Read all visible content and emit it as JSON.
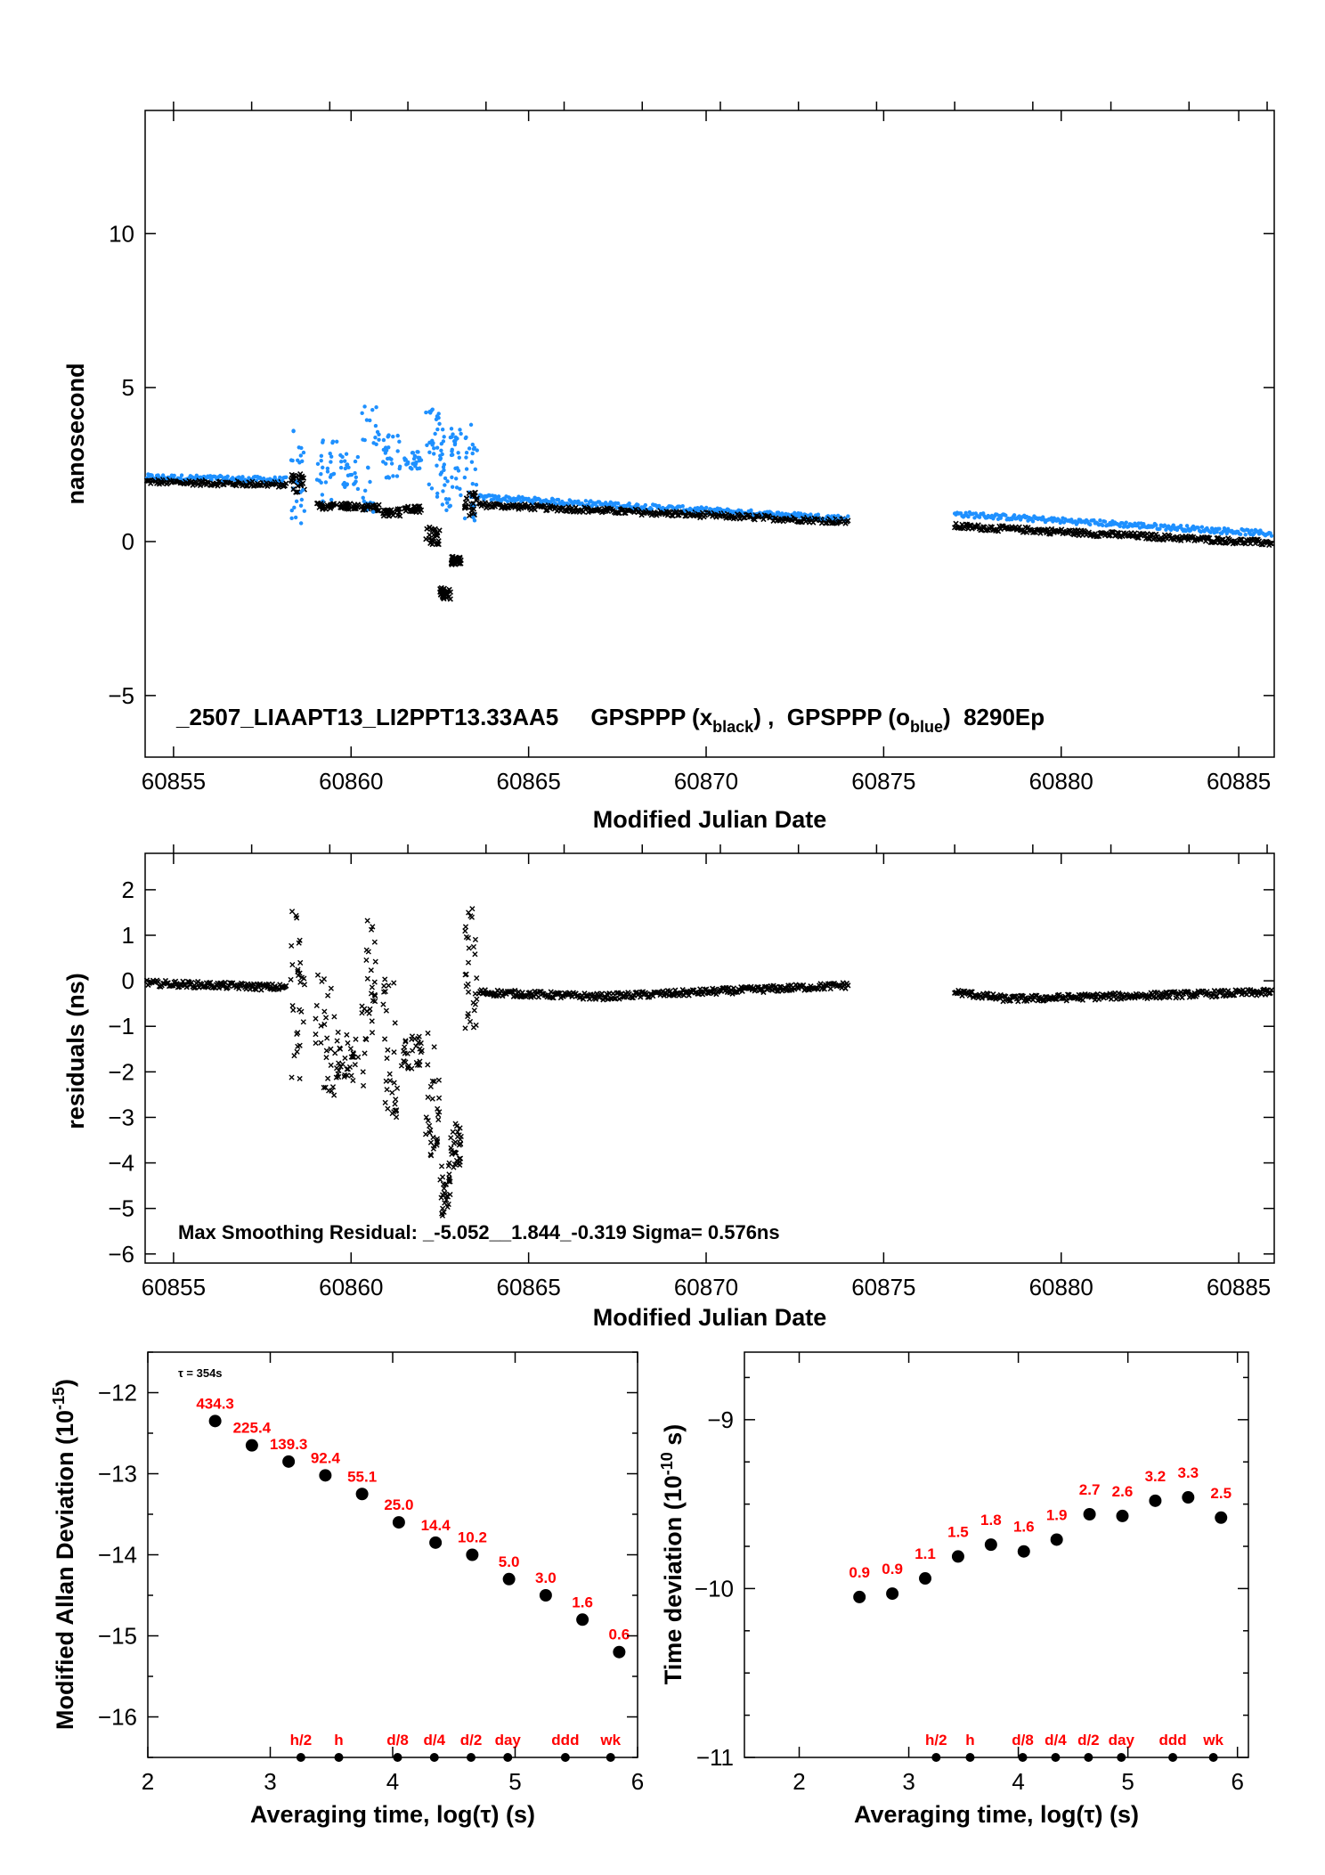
{
  "colors": {
    "black_series": "#000000",
    "blue_series": "#1e90ff",
    "label_red": "#ff0000"
  },
  "chart_data": [
    {
      "type": "scatter",
      "ylabel": "nanosecond",
      "xlabel": "Modified Julian Date",
      "xlim": [
        60854.2,
        60886
      ],
      "ylim": [
        -7,
        14
      ],
      "xticks": [
        "60855",
        "60860",
        "60865",
        "60870",
        "60875",
        "60880",
        "60885"
      ],
      "yticks": [
        "−5",
        "0",
        "5",
        "10"
      ],
      "annotation": {
        "prefix": "_2507_LIAAPT13_LI2PPT13.33AA5     GPSPPP (x",
        "sub1": "black",
        "mid": ") ,  GPSPPP (o",
        "sub2": "blue",
        "suffix": ")  8290Ep"
      },
      "series": [
        {
          "name": "GPSPPP (x black)",
          "marker": "x",
          "color": "#000000",
          "trend": [
            [
              60854.2,
              1.95
            ],
            [
              60858.2,
              1.85
            ],
            [
              60863.5,
              1.2
            ],
            [
              60874,
              0.65
            ],
            [
              60877,
              0.5
            ],
            [
              60886,
              -0.05
            ]
          ]
        },
        {
          "name": "GPSPPP (o blue)",
          "marker": "o",
          "color": "#1e90ff",
          "trend": [
            [
              60854.2,
              2.1
            ],
            [
              60858.2,
              2.0
            ],
            [
              60863.5,
              1.45
            ],
            [
              60874,
              0.75
            ],
            [
              60877,
              0.9
            ],
            [
              60886,
              0.25
            ]
          ]
        }
      ],
      "gap": [
        60874,
        60877
      ]
    },
    {
      "type": "scatter",
      "ylabel": "residuals (ns)",
      "xlabel": "Modified Julian Date",
      "xlim": [
        60854.2,
        60886
      ],
      "ylim": [
        -6.2,
        2.8
      ],
      "xticks": [
        "60855",
        "60860",
        "60865",
        "60870",
        "60875",
        "60880",
        "60885"
      ],
      "yticks": [
        "2",
        "1",
        "0",
        "−1",
        "−2",
        "−3",
        "−4",
        "−5",
        "−6"
      ],
      "annotation": "Max Smoothing Residual: _-5.052__1.844_-0.319  Sigma= 0.576ns",
      "trend": [
        [
          60854.2,
          -0.05
        ],
        [
          60858.2,
          -0.15
        ],
        [
          60863.5,
          -0.25
        ],
        [
          60867,
          -0.35
        ],
        [
          60874,
          -0.1
        ],
        [
          60877,
          -0.25
        ],
        [
          60878.5,
          -0.4
        ],
        [
          60886,
          -0.25
        ]
      ],
      "gap": [
        60874,
        60877
      ]
    },
    {
      "type": "scatter",
      "ylabel": "Modified Allan Deviation (10",
      "ylabel_sup": "-15",
      "ylabel_end": ")",
      "xlabel": "Averaging time, log(τ) (s)",
      "xlim": [
        2,
        6
      ],
      "ylim": [
        -16.5,
        -11.5
      ],
      "xticks": [
        "2",
        "3",
        "4",
        "5",
        "6"
      ],
      "yticks": [
        "−12",
        "−13",
        "−14",
        "−15",
        "−16"
      ],
      "tau_note": "τ = 354s",
      "x": [
        2.55,
        2.85,
        3.15,
        3.45,
        3.75,
        4.05,
        4.35,
        4.65,
        4.95,
        5.25,
        5.55,
        5.85
      ],
      "y": [
        -12.35,
        -12.65,
        -12.85,
        -13.02,
        -13.25,
        -13.6,
        -13.85,
        -14.0,
        -14.3,
        -14.5,
        -14.8,
        -15.2
      ],
      "point_labels": [
        "434.3",
        "225.4",
        "139.3",
        "92.4",
        "55.1",
        "25.0",
        "14.4",
        "10.2",
        "5.0",
        "3.0",
        "1.6",
        "0.6"
      ],
      "markers": [
        {
          "label": "h/2",
          "x": 3.25
        },
        {
          "label": "h",
          "x": 3.56
        },
        {
          "label": "d/8",
          "x": 4.04
        },
        {
          "label": "d/4",
          "x": 4.34
        },
        {
          "label": "d/2",
          "x": 4.64
        },
        {
          "label": "day",
          "x": 4.94
        },
        {
          "label": "ddd",
          "x": 5.41
        },
        {
          "label": "wk",
          "x": 5.78
        }
      ]
    },
    {
      "type": "scatter",
      "ylabel": "Time deviation (10",
      "ylabel_sup": "-10",
      "ylabel_end": " s)",
      "xlabel": "Averaging time, log(τ) (s)",
      "xlim": [
        1.5,
        6.1
      ],
      "ylim": [
        -11,
        -8.6
      ],
      "xticks": [
        "2",
        "3",
        "4",
        "5",
        "6"
      ],
      "yticks": [
        "−9",
        "−10",
        "−11"
      ],
      "x": [
        2.55,
        2.85,
        3.15,
        3.45,
        3.75,
        4.05,
        4.35,
        4.65,
        4.95,
        5.25,
        5.55,
        5.85
      ],
      "y": [
        -10.05,
        -10.03,
        -9.94,
        -9.81,
        -9.74,
        -9.78,
        -9.71,
        -9.56,
        -9.57,
        -9.48,
        -9.46,
        -9.58
      ],
      "point_labels": [
        "0.9",
        "0.9",
        "1.1",
        "1.5",
        "1.8",
        "1.6",
        "1.9",
        "2.7",
        "2.6",
        "3.2",
        "3.3",
        "2.5"
      ],
      "markers": [
        {
          "label": "h/2",
          "x": 3.25
        },
        {
          "label": "h",
          "x": 3.56
        },
        {
          "label": "d/8",
          "x": 4.04
        },
        {
          "label": "d/4",
          "x": 4.34
        },
        {
          "label": "d/2",
          "x": 4.64
        },
        {
          "label": "day",
          "x": 4.94
        },
        {
          "label": "ddd",
          "x": 5.41
        },
        {
          "label": "wk",
          "x": 5.78
        }
      ]
    }
  ]
}
